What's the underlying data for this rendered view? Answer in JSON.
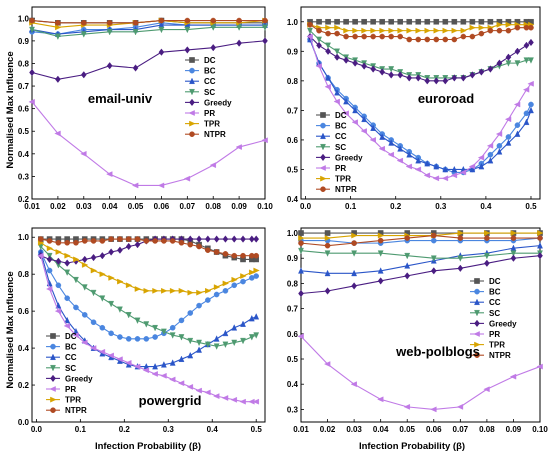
{
  "figure": {
    "ylabel": "Normalised Max Influence",
    "xlabel": "Infection Probability (β)"
  },
  "legend_labels": [
    "DC",
    "BC",
    "CC",
    "SC",
    "Greedy",
    "PR",
    "TPR",
    "NTPR"
  ],
  "colors": {
    "DC": "#555555",
    "BC": "#4a86e0",
    "CC": "#2a55c8",
    "SC": "#4e9a70",
    "Greedy": "#4a1d82",
    "PR": "#c07ae6",
    "TPR": "#d8a400",
    "NTPR": "#b04a22"
  },
  "chart_data": [
    {
      "type": "line",
      "title": "email-univ",
      "x": [
        0.01,
        0.02,
        0.03,
        0.04,
        0.05,
        0.06,
        0.07,
        0.08,
        0.09,
        0.1
      ],
      "xticks": [
        "0.01",
        "0.02",
        "0.03",
        "0.04",
        "0.05",
        "0.06",
        "0.07",
        "0.08",
        "0.09",
        "0.10"
      ],
      "xlim": [
        0.01,
        0.1
      ],
      "ylim": [
        0.2,
        1.05
      ],
      "yticks": [
        "0.2",
        "0.3",
        "0.4",
        "0.5",
        "0.6",
        "0.7",
        "0.8",
        "0.9",
        "1.0"
      ],
      "legend_position": "center-right",
      "series": [
        {
          "name": "DC",
          "values": [
            0.99,
            0.98,
            0.98,
            0.98,
            0.98,
            0.99,
            0.98,
            0.98,
            0.98,
            0.98
          ]
        },
        {
          "name": "BC",
          "values": [
            0.94,
            0.93,
            0.95,
            0.95,
            0.96,
            0.98,
            0.97,
            0.97,
            0.97,
            0.97
          ]
        },
        {
          "name": "CC",
          "values": [
            0.95,
            0.93,
            0.94,
            0.95,
            0.95,
            0.97,
            0.97,
            0.97,
            0.97,
            0.97
          ]
        },
        {
          "name": "SC",
          "values": [
            0.95,
            0.92,
            0.93,
            0.94,
            0.94,
            0.95,
            0.95,
            0.96,
            0.96,
            0.96
          ]
        },
        {
          "name": "Greedy",
          "values": [
            0.76,
            0.73,
            0.75,
            0.79,
            0.78,
            0.85,
            0.86,
            0.87,
            0.89,
            0.9
          ]
        },
        {
          "name": "PR",
          "values": [
            0.63,
            0.49,
            0.4,
            0.31,
            0.26,
            0.26,
            0.29,
            0.35,
            0.43,
            0.46
          ]
        },
        {
          "name": "TPR",
          "values": [
            0.98,
            0.96,
            0.97,
            0.97,
            0.98,
            0.99,
            0.98,
            0.98,
            0.98,
            0.99
          ]
        },
        {
          "name": "NTPR",
          "values": [
            0.99,
            0.98,
            0.98,
            0.98,
            0.98,
            0.99,
            0.99,
            0.99,
            0.99,
            0.99
          ]
        }
      ]
    },
    {
      "type": "line",
      "title": "euroroad",
      "x": [
        0.01,
        0.03,
        0.05,
        0.07,
        0.09,
        0.11,
        0.13,
        0.15,
        0.17,
        0.19,
        0.21,
        0.23,
        0.25,
        0.27,
        0.29,
        0.31,
        0.33,
        0.35,
        0.37,
        0.39,
        0.41,
        0.43,
        0.45,
        0.47,
        0.49,
        0.5
      ],
      "xticks": [
        "0.0",
        "0.1",
        "0.2",
        "0.3",
        "0.4",
        "0.5"
      ],
      "xlim": [
        -0.01,
        0.52
      ],
      "ylim": [
        0.4,
        1.05
      ],
      "yticks": [
        "0.4",
        "0.5",
        "0.6",
        "0.7",
        "0.8",
        "0.9",
        "1.0"
      ],
      "legend_position": "bottom-left",
      "series": [
        {
          "name": "DC",
          "values": [
            1.0,
            1.0,
            1.0,
            1.0,
            1.0,
            1.0,
            1.0,
            1.0,
            1.0,
            1.0,
            1.0,
            1.0,
            1.0,
            1.0,
            1.0,
            1.0,
            1.0,
            1.0,
            1.0,
            1.0,
            1.0,
            1.0,
            1.0,
            1.0,
            1.0,
            1.0
          ]
        },
        {
          "name": "BC",
          "values": [
            0.94,
            0.86,
            0.81,
            0.77,
            0.74,
            0.71,
            0.68,
            0.65,
            0.62,
            0.6,
            0.58,
            0.56,
            0.54,
            0.52,
            0.51,
            0.5,
            0.49,
            0.49,
            0.5,
            0.52,
            0.55,
            0.58,
            0.61,
            0.65,
            0.69,
            0.72
          ]
        },
        {
          "name": "CC",
          "values": [
            0.94,
            0.86,
            0.81,
            0.76,
            0.73,
            0.7,
            0.67,
            0.64,
            0.61,
            0.59,
            0.57,
            0.55,
            0.53,
            0.52,
            0.51,
            0.5,
            0.5,
            0.5,
            0.5,
            0.51,
            0.53,
            0.56,
            0.59,
            0.62,
            0.66,
            0.7
          ]
        },
        {
          "name": "SC",
          "values": [
            0.97,
            0.94,
            0.92,
            0.9,
            0.88,
            0.87,
            0.86,
            0.85,
            0.84,
            0.84,
            0.83,
            0.82,
            0.82,
            0.81,
            0.81,
            0.81,
            0.81,
            0.81,
            0.82,
            0.83,
            0.84,
            0.85,
            0.86,
            0.86,
            0.87,
            0.87
          ]
        },
        {
          "name": "Greedy",
          "values": [
            0.95,
            0.92,
            0.9,
            0.88,
            0.87,
            0.86,
            0.85,
            0.84,
            0.83,
            0.82,
            0.82,
            0.81,
            0.81,
            0.8,
            0.8,
            0.8,
            0.81,
            0.81,
            0.82,
            0.83,
            0.84,
            0.86,
            0.88,
            0.9,
            0.92,
            0.93
          ]
        },
        {
          "name": "PR",
          "values": [
            0.95,
            0.85,
            0.78,
            0.73,
            0.69,
            0.66,
            0.63,
            0.6,
            0.57,
            0.55,
            0.53,
            0.51,
            0.5,
            0.48,
            0.47,
            0.47,
            0.48,
            0.49,
            0.51,
            0.54,
            0.58,
            0.62,
            0.67,
            0.72,
            0.77,
            0.79
          ]
        },
        {
          "name": "TPR",
          "values": [
            0.99,
            0.98,
            0.98,
            0.98,
            0.97,
            0.97,
            0.97,
            0.97,
            0.97,
            0.97,
            0.97,
            0.97,
            0.97,
            0.97,
            0.97,
            0.97,
            0.97,
            0.97,
            0.98,
            0.98,
            0.98,
            0.99,
            0.99,
            0.99,
            0.99,
            0.99
          ]
        },
        {
          "name": "NTPR",
          "values": [
            0.99,
            0.97,
            0.96,
            0.96,
            0.95,
            0.95,
            0.95,
            0.95,
            0.95,
            0.95,
            0.95,
            0.94,
            0.94,
            0.94,
            0.94,
            0.94,
            0.94,
            0.95,
            0.95,
            0.96,
            0.97,
            0.97,
            0.97,
            0.98,
            0.98,
            0.98
          ]
        }
      ]
    },
    {
      "type": "line",
      "title": "powergrid",
      "x": [
        0.01,
        0.03,
        0.05,
        0.07,
        0.09,
        0.11,
        0.13,
        0.15,
        0.17,
        0.19,
        0.21,
        0.23,
        0.25,
        0.27,
        0.29,
        0.31,
        0.33,
        0.35,
        0.37,
        0.39,
        0.41,
        0.43,
        0.45,
        0.47,
        0.49,
        0.5
      ],
      "xticks": [
        "0.0",
        "0.1",
        "0.2",
        "0.3",
        "0.4",
        "0.5"
      ],
      "xlim": [
        -0.01,
        0.52
      ],
      "ylim": [
        0.0,
        1.05
      ],
      "yticks": [
        "0.0",
        "0.2",
        "0.4",
        "0.6",
        "0.8",
        "1.0"
      ],
      "legend_position": "left",
      "series": [
        {
          "name": "DC",
          "values": [
            0.99,
            0.99,
            0.99,
            0.99,
            0.99,
            0.99,
            0.99,
            0.99,
            0.99,
            0.99,
            0.99,
            0.99,
            0.99,
            0.99,
            0.99,
            0.99,
            0.99,
            0.98,
            0.96,
            0.94,
            0.92,
            0.9,
            0.89,
            0.88,
            0.88,
            0.88
          ]
        },
        {
          "name": "BC",
          "values": [
            0.92,
            0.82,
            0.74,
            0.67,
            0.62,
            0.58,
            0.54,
            0.51,
            0.48,
            0.46,
            0.45,
            0.45,
            0.45,
            0.46,
            0.48,
            0.51,
            0.55,
            0.59,
            0.63,
            0.66,
            0.69,
            0.71,
            0.74,
            0.76,
            0.78,
            0.79
          ]
        },
        {
          "name": "CC",
          "values": [
            0.92,
            0.75,
            0.63,
            0.55,
            0.49,
            0.44,
            0.4,
            0.37,
            0.35,
            0.33,
            0.31,
            0.3,
            0.3,
            0.3,
            0.31,
            0.32,
            0.34,
            0.36,
            0.39,
            0.42,
            0.45,
            0.48,
            0.51,
            0.53,
            0.56,
            0.57
          ]
        },
        {
          "name": "SC",
          "values": [
            0.95,
            0.9,
            0.85,
            0.81,
            0.77,
            0.73,
            0.7,
            0.67,
            0.64,
            0.61,
            0.58,
            0.55,
            0.53,
            0.51,
            0.49,
            0.47,
            0.46,
            0.44,
            0.43,
            0.42,
            0.41,
            0.42,
            0.43,
            0.44,
            0.46,
            0.47
          ]
        },
        {
          "name": "Greedy",
          "values": [
            0.9,
            0.88,
            0.87,
            0.86,
            0.87,
            0.88,
            0.89,
            0.9,
            0.92,
            0.93,
            0.95,
            0.96,
            0.98,
            0.99,
            0.99,
            0.99,
            0.99,
            0.99,
            0.99,
            0.99,
            0.99,
            0.99,
            0.99,
            0.99,
            0.99,
            0.99
          ]
        },
        {
          "name": "PR",
          "values": [
            0.9,
            0.72,
            0.6,
            0.52,
            0.47,
            0.43,
            0.4,
            0.38,
            0.36,
            0.34,
            0.32,
            0.3,
            0.28,
            0.26,
            0.25,
            0.23,
            0.21,
            0.19,
            0.17,
            0.16,
            0.14,
            0.13,
            0.12,
            0.11,
            0.11,
            0.11
          ]
        },
        {
          "name": "TPR",
          "values": [
            0.97,
            0.94,
            0.92,
            0.9,
            0.88,
            0.85,
            0.82,
            0.8,
            0.78,
            0.76,
            0.74,
            0.72,
            0.71,
            0.71,
            0.71,
            0.71,
            0.71,
            0.7,
            0.7,
            0.71,
            0.73,
            0.75,
            0.77,
            0.79,
            0.81,
            0.82
          ]
        },
        {
          "name": "NTPR",
          "values": [
            0.99,
            0.98,
            0.97,
            0.97,
            0.97,
            0.98,
            0.98,
            0.98,
            0.99,
            0.99,
            0.99,
            0.99,
            0.98,
            0.98,
            0.98,
            0.98,
            0.97,
            0.96,
            0.95,
            0.93,
            0.92,
            0.91,
            0.9,
            0.9,
            0.9,
            0.9
          ]
        }
      ]
    },
    {
      "type": "line",
      "title": "web-polblogs",
      "x": [
        0.01,
        0.02,
        0.03,
        0.04,
        0.05,
        0.06,
        0.07,
        0.08,
        0.09,
        0.1
      ],
      "xticks": [
        "0.01",
        "0.02",
        "0.03",
        "0.04",
        "0.05",
        "0.06",
        "0.07",
        "0.08",
        "0.09",
        "0.10"
      ],
      "xlim": [
        0.01,
        0.1
      ],
      "ylim": [
        0.25,
        1.02
      ],
      "yticks": [
        "0.3",
        "0.4",
        "0.5",
        "0.6",
        "0.7",
        "0.8",
        "0.9",
        "1.0"
      ],
      "legend_position": "right",
      "series": [
        {
          "name": "DC",
          "values": [
            1.0,
            1.0,
            1.0,
            1.0,
            1.0,
            1.0,
            1.0,
            1.0,
            1.0,
            1.0
          ]
        },
        {
          "name": "BC",
          "values": [
            0.97,
            0.97,
            0.96,
            0.96,
            0.97,
            0.97,
            0.97,
            0.97,
            0.97,
            0.98
          ]
        },
        {
          "name": "CC",
          "values": [
            0.85,
            0.84,
            0.84,
            0.85,
            0.87,
            0.89,
            0.91,
            0.92,
            0.94,
            0.95
          ]
        },
        {
          "name": "SC",
          "values": [
            0.93,
            0.92,
            0.92,
            0.92,
            0.91,
            0.9,
            0.9,
            0.91,
            0.92,
            0.92
          ]
        },
        {
          "name": "Greedy",
          "values": [
            0.76,
            0.77,
            0.79,
            0.81,
            0.83,
            0.85,
            0.86,
            0.88,
            0.9,
            0.91
          ]
        },
        {
          "name": "PR",
          "values": [
            0.59,
            0.48,
            0.4,
            0.34,
            0.31,
            0.3,
            0.31,
            0.38,
            0.43,
            0.47
          ]
        },
        {
          "name": "TPR",
          "values": [
            0.98,
            0.98,
            0.99,
            0.99,
            0.99,
            0.99,
            1.0,
            1.0,
            1.0,
            1.0
          ]
        },
        {
          "name": "NTPR",
          "values": [
            0.96,
            0.95,
            0.96,
            0.97,
            0.98,
            0.99,
            0.98,
            0.98,
            0.98,
            0.98
          ]
        }
      ]
    }
  ]
}
